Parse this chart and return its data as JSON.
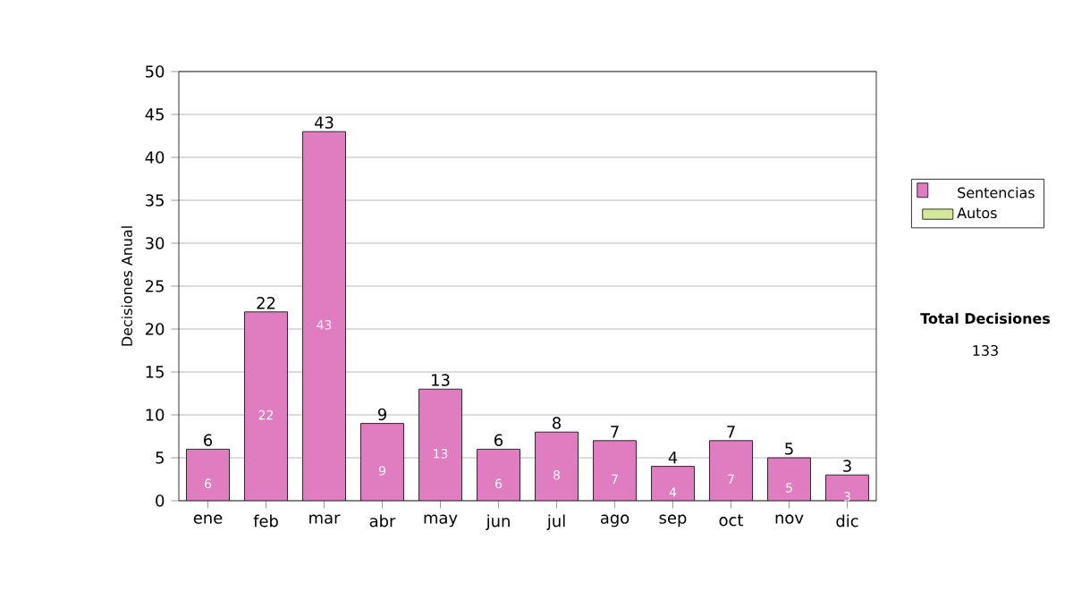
{
  "chart_data": {
    "type": "bar",
    "ylabel": "Decisiones Anual",
    "categories": [
      "ene",
      "feb",
      "mar",
      "abr",
      "may",
      "jun",
      "jul",
      "ago",
      "sep",
      "oct",
      "nov",
      "dic"
    ],
    "series": [
      {
        "name": "Sentencias",
        "color": "#e07cc0",
        "values": [
          6,
          22,
          43,
          9,
          13,
          6,
          8,
          7,
          4,
          7,
          5,
          3
        ]
      },
      {
        "name": "Autos",
        "color": "#d3e89c",
        "values": [
          null,
          null,
          null,
          null,
          null,
          null,
          null,
          null,
          null,
          null,
          null,
          null
        ]
      }
    ],
    "stacked": true,
    "data_labels": true,
    "totals": [
      "6",
      "22",
      "43",
      "9",
      "13",
      "6",
      "8",
      "7",
      "4",
      "7",
      "5",
      "3"
    ],
    "ylim": [
      0,
      50
    ],
    "yticks": [
      0,
      5,
      10,
      15,
      20,
      25,
      30,
      35,
      40,
      45,
      50
    ],
    "grid": "y",
    "legend": "right",
    "annotations": [
      "Total Decisiones",
      "133"
    ]
  }
}
